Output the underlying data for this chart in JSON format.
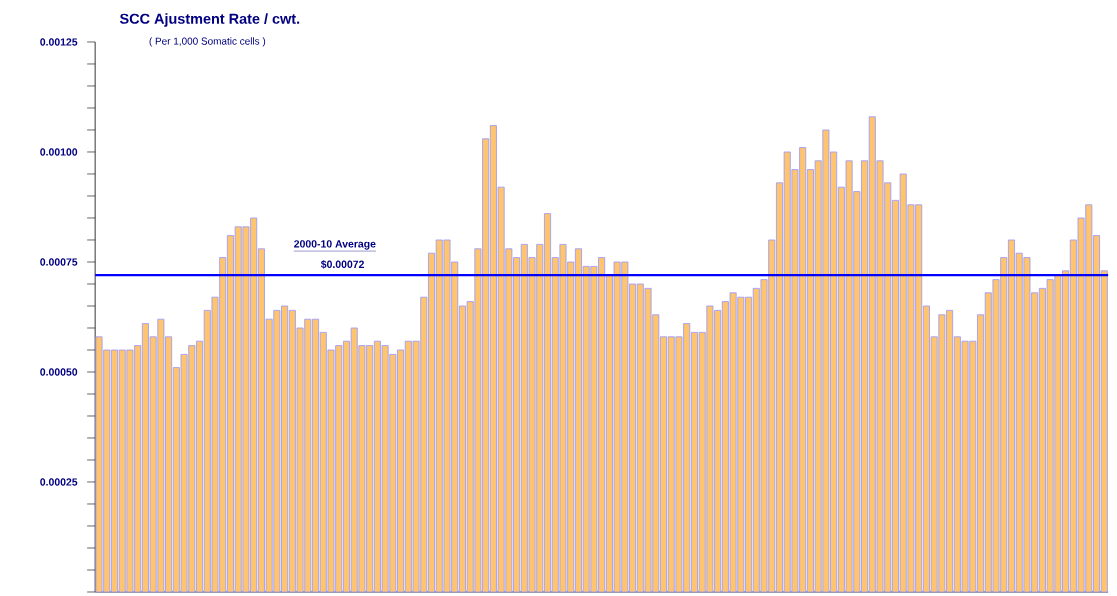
{
  "chart_data": {
    "type": "bar",
    "title": "SCC Ajustment Rate / cwt.",
    "subtitle": "( Per 1,000 Somatic cells )",
    "categories": [
      null,
      null,
      null,
      null,
      null,
      null,
      null,
      null,
      null,
      null,
      null,
      null,
      null,
      null,
      null,
      null,
      null,
      null,
      null,
      null,
      null,
      null,
      null,
      null,
      null,
      null,
      null,
      null,
      null,
      null,
      null,
      null,
      null,
      null,
      null,
      null,
      null,
      null,
      null,
      null,
      null,
      null,
      null,
      null,
      null,
      null,
      null,
      null,
      null,
      null,
      null,
      null,
      null,
      null,
      null,
      null,
      null,
      null,
      null,
      null,
      null,
      null,
      null,
      null,
      null,
      null,
      null,
      null,
      null,
      null,
      null,
      null,
      null,
      null,
      null,
      null,
      null,
      null,
      null,
      null,
      null,
      null,
      null,
      null,
      null,
      null,
      null,
      null,
      null,
      null,
      null,
      null,
      null,
      null,
      null,
      null,
      null,
      null,
      null,
      null,
      null,
      null,
      null,
      null,
      null,
      null,
      null,
      null,
      null,
      null,
      null,
      null,
      null,
      null,
      null,
      null,
      null,
      null,
      null,
      null,
      null,
      null,
      null,
      null,
      null,
      null,
      null,
      null,
      null,
      null,
      null
    ],
    "values": [
      0.00058,
      0.00055,
      0.00055,
      0.00055,
      0.00055,
      0.00056,
      0.00061,
      0.00058,
      0.00062,
      0.00058,
      0.00051,
      0.00054,
      0.00056,
      0.00057,
      0.00064,
      0.00067,
      0.00076,
      0.00081,
      0.00083,
      0.00083,
      0.00085,
      0.00078,
      0.00062,
      0.00064,
      0.00065,
      0.00064,
      0.0006,
      0.00062,
      0.00062,
      0.00059,
      0.00055,
      0.00056,
      0.00057,
      0.0006,
      0.00056,
      0.00056,
      0.00057,
      0.00056,
      0.00054,
      0.00055,
      0.00057,
      0.00057,
      0.00067,
      0.00077,
      0.0008,
      0.0008,
      0.00075,
      0.00065,
      0.00066,
      0.00078,
      0.00103,
      0.00106,
      0.00092,
      0.00078,
      0.00076,
      0.00079,
      0.00076,
      0.00079,
      0.00086,
      0.00076,
      0.00079,
      0.00075,
      0.00078,
      0.00074,
      0.00074,
      0.00076,
      0.00072,
      0.00075,
      0.00075,
      0.0007,
      0.0007,
      0.00069,
      0.00063,
      0.00058,
      0.00058,
      0.00058,
      0.00061,
      0.00059,
      0.00059,
      0.00065,
      0.00064,
      0.00066,
      0.00068,
      0.00067,
      0.00067,
      0.00069,
      0.00071,
      0.0008,
      0.00093,
      0.001,
      0.00096,
      0.00101,
      0.00096,
      0.00098,
      0.00105,
      0.001,
      0.00092,
      0.00098,
      0.00091,
      0.00098,
      0.00108,
      0.00098,
      0.00093,
      0.00089,
      0.00095,
      0.00088,
      0.00088,
      0.00065,
      0.00058,
      0.00063,
      0.00064,
      0.00058,
      0.00057,
      0.00057,
      0.00063,
      0.00068,
      0.00071,
      0.00076,
      0.0008,
      0.00077,
      0.00076,
      0.00068,
      0.00069,
      0.00071,
      0.00072,
      0.00073,
      0.0008,
      0.00085,
      0.00088,
      0.00081,
      0.00073
    ],
    "color": "#ffc46e",
    "ylim": [
      0,
      0.00125
    ],
    "yticks": [
      {
        "value": 0,
        "label": null
      },
      {
        "value": 0.00025,
        "label": "0.00025"
      },
      {
        "value": 0.0005,
        "label": "0.00050"
      },
      {
        "value": 0.00075,
        "label": "0.00075"
      },
      {
        "value": 0.001,
        "label": "0.00100"
      },
      {
        "value": 0.00125,
        "label": "0.00125"
      }
    ],
    "ref_lines": [
      {
        "axis": "y",
        "value": 0.00072,
        "label": "2000-10 Average",
        "color": "#0000ff"
      }
    ],
    "annotations": [
      {
        "text": "$0.00072",
        "y": 0.00072
      }
    ]
  }
}
